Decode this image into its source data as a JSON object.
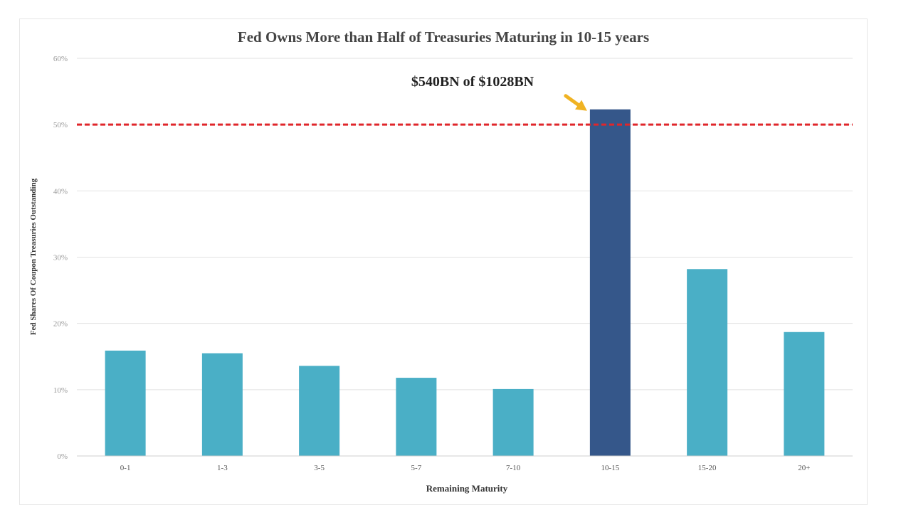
{
  "chart_data": {
    "type": "bar",
    "title": "Fed Owns More than Half of Treasuries Maturing in 10-15 years",
    "xlabel": "Remaining Maturity",
    "ylabel": "Fed Shares Of Coupon Treasuries Outstanding",
    "categories": [
      "0-1",
      "1-3",
      "3-5",
      "5-7",
      "7-10",
      "10-15",
      "15-20",
      "20+"
    ],
    "values": [
      0.159,
      0.155,
      0.136,
      0.118,
      0.101,
      0.523,
      0.282,
      0.187
    ],
    "ylim": [
      0,
      0.6
    ],
    "yticks": [
      {
        "value": 0,
        "label": "0%"
      },
      {
        "value": 0.1,
        "label": "10%"
      },
      {
        "value": 0.2,
        "label": "20%"
      },
      {
        "value": 0.3,
        "label": "30%"
      },
      {
        "value": 0.4,
        "label": "40%"
      },
      {
        "value": 0.5,
        "label": "50%"
      },
      {
        "value": 0.6,
        "label": "60%"
      }
    ],
    "reference_line": {
      "value": 0.5,
      "color": "#e0262b",
      "style": "dashed"
    },
    "annotation": {
      "text": "$540BN of $1028BN",
      "target_category": "10-15",
      "arrow_color": "#f0b323"
    },
    "highlight_category": "10-15",
    "colors": {
      "bar": "#4aafc6",
      "highlight": "#35578a",
      "grid": "#e2e2e2"
    },
    "grid": true,
    "legend": "none"
  }
}
